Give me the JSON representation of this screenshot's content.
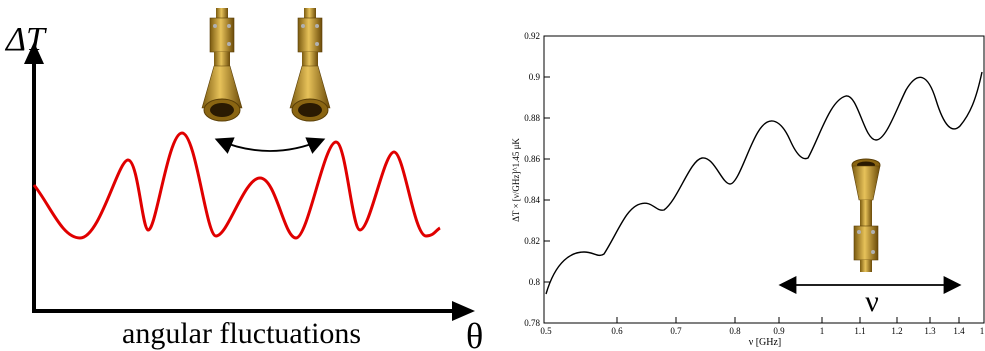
{
  "left_panel": {
    "y_symbol": "ΔT",
    "x_label": "angular fluctuations",
    "x_symbol": "θ"
  },
  "right_panel": {
    "ylabel": "ΔT × [ν/GHz]^1.45 μK",
    "xlabel": "ν  [GHz]",
    "nu_symbol": "ν"
  },
  "chart_data": [
    {
      "type": "line",
      "title": "",
      "xlabel": "angular fluctuations",
      "ylabel": "ΔT",
      "series": [
        {
          "color": "#e00000",
          "x": [
            0,
            0.05,
            0.1,
            0.15,
            0.2,
            0.25,
            0.3,
            0.35,
            0.4,
            0.45,
            0.5,
            0.55,
            0.6,
            0.65,
            0.7,
            0.75,
            0.8,
            0.85,
            0.9,
            0.95,
            1.0
          ],
          "values": [
            0.45,
            0.2,
            0.02,
            0.35,
            0.75,
            0.1,
            0.92,
            0.45,
            0.05,
            0.55,
            0.62,
            0.1,
            0.05,
            0.9,
            0.1,
            0.8,
            0.35,
            0.0,
            0.78,
            0.1,
            0.05
          ]
        }
      ]
    },
    {
      "type": "line",
      "title": "",
      "xlabel": "ν  [GHz]",
      "ylabel": "ΔT × [ν/GHz]^1.45 μK",
      "xlim": [
        0.5,
        1.0
      ],
      "ylim": [
        0.78,
        0.92
      ],
      "xticks": [
        "0.5",
        "0.6",
        "0.7",
        "0.8",
        "0.9",
        "1",
        "1.1",
        "1.2",
        "1.3",
        "1.4",
        "1"
      ],
      "yticks": [
        "0.78",
        "0.8",
        "0.82",
        "0.84",
        "0.86",
        "0.88",
        "0.9",
        "0.92"
      ],
      "series": [
        {
          "color": "#000000",
          "x": [
            0.5,
            0.52,
            0.55,
            0.57,
            0.6,
            0.62,
            0.65,
            0.68,
            0.7,
            0.72,
            0.75,
            0.78,
            0.8,
            0.82,
            0.85,
            0.88,
            0.9,
            0.92,
            0.95,
            0.98,
            1.0
          ],
          "values": [
            0.795,
            0.813,
            0.814,
            0.82,
            0.836,
            0.838,
            0.836,
            0.855,
            0.86,
            0.848,
            0.862,
            0.877,
            0.86,
            0.872,
            0.89,
            0.868,
            0.883,
            0.9,
            0.89,
            0.872,
            0.902
          ]
        }
      ]
    }
  ]
}
